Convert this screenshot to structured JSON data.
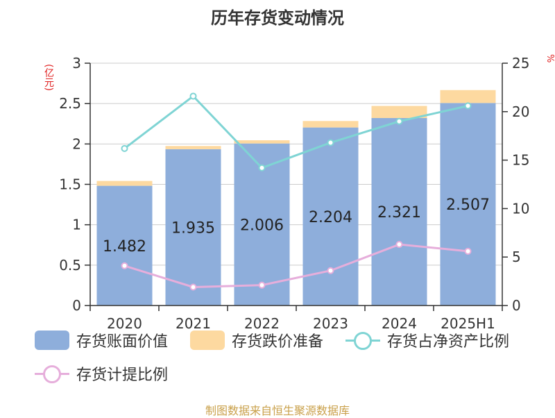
{
  "title": "历年存货变动情况",
  "left_axis_unit": "(亿元)",
  "right_axis_unit": "%",
  "source": "制图数据来自恒生聚源数据库",
  "colors": {
    "book_value": "#8eaedb",
    "provision": "#fdd9a0",
    "ratio_net_assets": "#7fd4d4",
    "provision_ratio": "#e6aedb"
  },
  "legend": {
    "book_value": "存货账面价值",
    "provision": "存货跌价准备",
    "ratio_net_assets": "存货占净资产比例",
    "provision_ratio": "存货计提比例"
  },
  "chart_data": {
    "type": "bar",
    "title": "历年存货变动情况",
    "categories": [
      "2020",
      "2021",
      "2022",
      "2023",
      "2024",
      "2025H1"
    ],
    "ylabel": "(亿元)",
    "y2label": "%",
    "ylim": [
      0,
      3
    ],
    "y2lim": [
      0,
      25
    ],
    "yticks": [
      0,
      0.5,
      1,
      1.5,
      2,
      2.5,
      3
    ],
    "y2ticks": [
      0,
      5,
      10,
      15,
      20,
      25
    ],
    "grid": true,
    "legend_position": "bottom",
    "series": [
      {
        "name": "存货账面价值",
        "type": "bar",
        "stack": "inventory",
        "axis": "left",
        "values": [
          1.482,
          1.935,
          2.006,
          2.204,
          2.321,
          2.507
        ],
        "labels": [
          "1.482",
          "1.935",
          "2.006",
          "2.204",
          "2.321",
          "2.507"
        ]
      },
      {
        "name": "存货跌价准备",
        "type": "bar",
        "stack": "inventory",
        "axis": "left",
        "values": [
          0.06,
          0.04,
          0.04,
          0.08,
          0.15,
          0.16
        ]
      },
      {
        "name": "存货占净资产比例",
        "type": "line",
        "axis": "right",
        "values": [
          16.2,
          21.6,
          14.2,
          16.8,
          19.0,
          20.6
        ]
      },
      {
        "name": "存货计提比例",
        "type": "line",
        "axis": "right",
        "values": [
          4.1,
          1.9,
          2.1,
          3.6,
          6.3,
          5.6
        ]
      }
    ]
  }
}
